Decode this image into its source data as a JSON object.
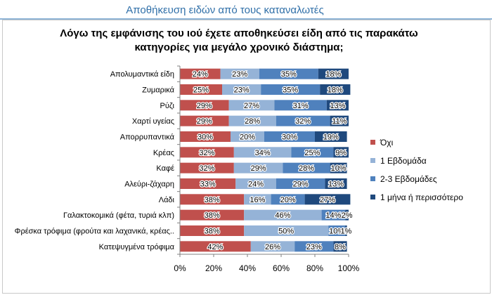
{
  "header": {
    "title": "Αποθήκευση ειδών από τους καταναλωτές"
  },
  "chart_data": {
    "type": "bar",
    "orientation": "horizontal",
    "stacked": "percent",
    "title_lines": [
      "Λόγω της εμφάνισης του ιού έχετε αποθηκεύσει είδη από τις παρακάτω",
      "κατηγορίες για μεγάλο χρονικό διάστημα;"
    ],
    "categories": [
      "Απολυμαντικά είδη",
      "Ζυμαρικά",
      "Ρύζι",
      "Χαρτί υγείας",
      "Απορρυπαντικά",
      "Κρέας",
      "Καφέ",
      "Αλεύρι-ζάχαρη",
      "Λάδι",
      "Γαλακτοκομικά (φέτα, τυριά κλπ)",
      "Φρέσκα τρόφιμα (φρούτα και λαχανικά, κρέας..",
      "Κατεψυγμένα τρόφιμα"
    ],
    "series": [
      {
        "name": "Όχι",
        "color": "#c0504d",
        "values": [
          24,
          25,
          29,
          29,
          30,
          32,
          32,
          33,
          38,
          38,
          38,
          42
        ]
      },
      {
        "name": "1 Εβδομάδα",
        "color": "#95b3d7",
        "values": [
          23,
          23,
          27,
          28,
          20,
          34,
          29,
          24,
          16,
          46,
          50,
          26
        ]
      },
      {
        "name": "2-3 Εβδομάδες",
        "color": "#4f81bd",
        "values": [
          35,
          35,
          31,
          32,
          30,
          25,
          28,
          29,
          20,
          14,
          10,
          23
        ]
      },
      {
        "name": "1 μήνα ή περισσότερο",
        "color": "#1f497d",
        "values": [
          18,
          18,
          13,
          11,
          19,
          9,
          10,
          13,
          27,
          2,
          1,
          8
        ]
      }
    ],
    "xlim": [
      0,
      100
    ],
    "xticks": [
      "0%",
      "20%",
      "40%",
      "60%",
      "80%",
      "100%"
    ],
    "grid": false,
    "legend_position": "right"
  }
}
